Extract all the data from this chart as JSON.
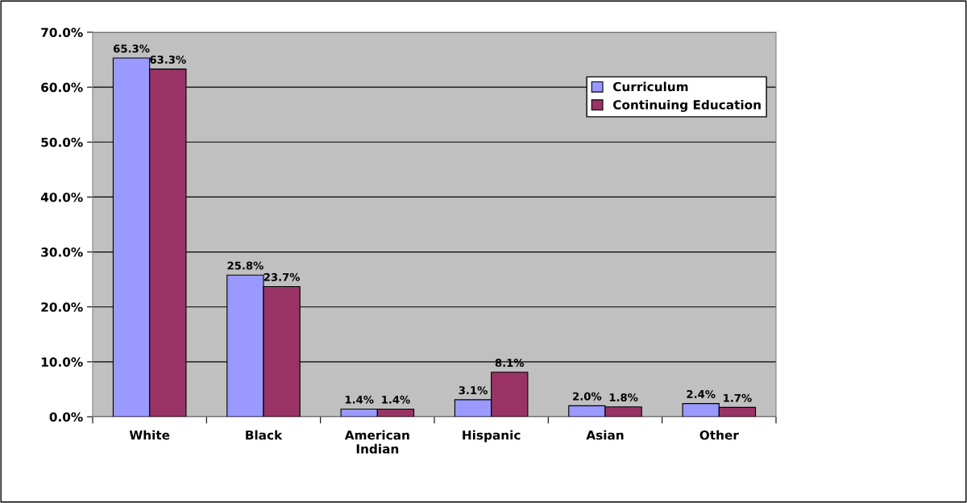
{
  "chart_data": {
    "type": "bar",
    "categories": [
      "White",
      "Black",
      "American Indian",
      "Hispanic",
      "Asian",
      "Other"
    ],
    "series": [
      {
        "name": "Curriculum",
        "color": "#9999ff",
        "values": [
          65.3,
          25.8,
          1.4,
          3.1,
          2.0,
          2.4
        ],
        "value_labels": [
          "65.3%",
          "25.8%",
          "1.4%",
          "3.1%",
          "2.0%",
          "2.4%"
        ]
      },
      {
        "name": "Continuing Education",
        "color": "#993366",
        "values": [
          63.3,
          23.7,
          1.4,
          8.1,
          1.8,
          1.7
        ],
        "value_labels": [
          "63.3%",
          "23.7%",
          "1.4%",
          "8.1%",
          "1.8%",
          "1.7%"
        ]
      }
    ],
    "ylim": [
      0,
      70
    ],
    "yticks": [
      {
        "value": 0,
        "label": "0.0%"
      },
      {
        "value": 10,
        "label": "10.0%"
      },
      {
        "value": 20,
        "label": "20.0%"
      },
      {
        "value": 30,
        "label": "30.0%"
      },
      {
        "value": 40,
        "label": "40.0%"
      },
      {
        "value": 50,
        "label": "50.0%"
      },
      {
        "value": 60,
        "label": "60.0%"
      },
      {
        "value": 70,
        "label": "70.0%"
      }
    ],
    "grid": "y",
    "legend": "top right"
  }
}
